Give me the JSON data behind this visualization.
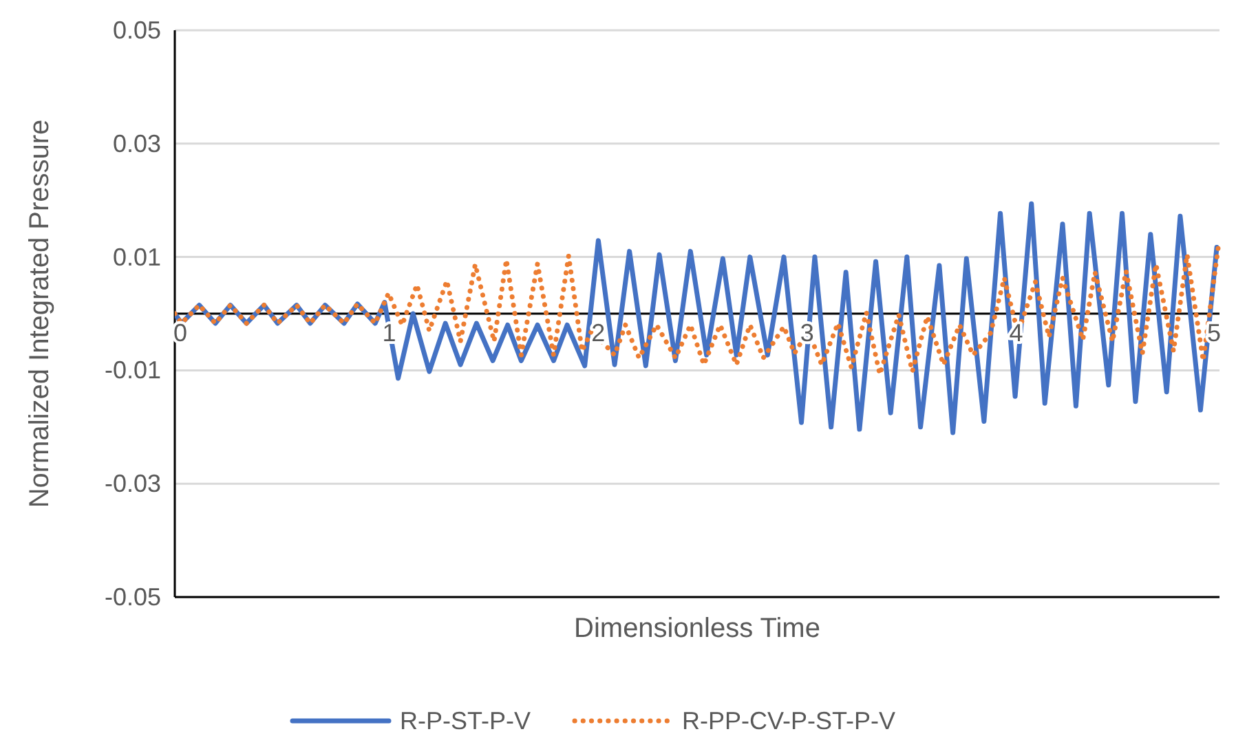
{
  "chart_data": {
    "type": "line",
    "xlabel": "Dimensionless Time",
    "ylabel": "Normalized Integrated Pressure",
    "xlim": [
      0,
      5
    ],
    "xticks": [
      0,
      1,
      2,
      3,
      4,
      5
    ],
    "ylim": [
      -0.05,
      0.05
    ],
    "yticks": [
      -0.05,
      -0.03,
      -0.01,
      0.01,
      0.03,
      0.05
    ],
    "grid": "y",
    "legend": "bottom",
    "marker": "none",
    "series": [
      {
        "name": "R-P-ST-P-V",
        "color": "#4472c4",
        "line_style": "solid",
        "x": [
          0,
          0.032,
          0.117,
          0.194,
          0.266,
          0.343,
          0.427,
          0.492,
          0.583,
          0.648,
          0.719,
          0.81,
          0.874,
          0.959,
          1.004,
          1.069,
          1.14,
          1.218,
          1.295,
          1.367,
          1.444,
          1.522,
          1.593,
          1.658,
          1.736,
          1.813,
          1.878,
          1.962,
          2.027,
          2.105,
          2.176,
          2.254,
          2.319,
          2.396,
          2.468,
          2.545,
          2.623,
          2.688,
          2.753,
          2.837,
          2.915,
          2.999,
          3.063,
          3.141,
          3.212,
          3.277,
          3.355,
          3.426,
          3.504,
          3.569,
          3.659,
          3.724,
          3.789,
          3.873,
          3.951,
          4.022,
          4.1,
          4.164,
          4.249,
          4.313,
          4.378,
          4.469,
          4.534,
          4.598,
          4.67,
          4.747,
          4.812,
          4.909,
          4.987
        ],
        "values": [
          0,
          -0.0017,
          0.0015,
          -0.0017,
          0.0015,
          -0.0017,
          0.0015,
          -0.0017,
          0.0015,
          -0.0017,
          0.0015,
          -0.0017,
          0.0017,
          -0.0017,
          0.002,
          -0.0114,
          0,
          -0.0102,
          -0.0017,
          -0.009,
          -0.0017,
          -0.0083,
          -0.002,
          -0.0083,
          -0.002,
          -0.0083,
          -0.002,
          -0.0092,
          0.0129,
          -0.009,
          0.011,
          -0.0092,
          0.0104,
          -0.0083,
          0.011,
          -0.0073,
          0.0097,
          -0.0073,
          0.01,
          -0.0073,
          0.01,
          -0.0192,
          0.01,
          -0.02,
          0.0073,
          -0.0204,
          0.0092,
          -0.0175,
          0.01,
          -0.02,
          0.0085,
          -0.021,
          0.0097,
          -0.019,
          0.0177,
          -0.0146,
          0.0194,
          -0.0158,
          0.0158,
          -0.0163,
          0.0177,
          -0.0126,
          0.0177,
          -0.0155,
          0.014,
          -0.0138,
          0.0172,
          -0.017,
          0.0117
        ]
      },
      {
        "name": "R-PP-CV-P-ST-P-V",
        "color": "#ed7d31",
        "line_style": "dotted",
        "x": [
          0,
          0.032,
          0.117,
          0.194,
          0.266,
          0.343,
          0.427,
          0.492,
          0.583,
          0.648,
          0.719,
          0.81,
          0.874,
          0.959,
          1.023,
          1.088,
          1.159,
          1.218,
          1.302,
          1.367,
          1.438,
          1.528,
          1.587,
          1.658,
          1.736,
          1.813,
          1.885,
          1.949,
          1.995,
          2.105,
          2.157,
          2.222,
          2.306,
          2.396,
          2.468,
          2.532,
          2.61,
          2.688,
          2.753,
          2.817,
          2.915,
          2.966,
          3.031,
          3.096,
          3.174,
          3.238,
          3.31,
          3.374,
          3.465,
          3.53,
          3.601,
          3.679,
          3.756,
          3.821,
          3.905,
          3.97,
          4.035,
          4.119,
          4.184,
          4.249,
          4.346,
          4.404,
          4.488,
          4.553,
          4.631,
          4.696,
          4.78,
          4.845,
          4.922,
          4.994
        ],
        "values": [
          0,
          -0.0017,
          0.0015,
          -0.0017,
          0.0015,
          -0.0017,
          0.0015,
          -0.0017,
          0.0015,
          -0.0017,
          0.0015,
          -0.0017,
          0.0017,
          -0.0017,
          0.0036,
          -0.002,
          0.0051,
          -0.003,
          0.0058,
          -0.0049,
          0.0087,
          -0.0049,
          0.0095,
          -0.0073,
          0.0088,
          -0.0073,
          0.0102,
          -0.0066,
          -0.003,
          -0.0073,
          -0.002,
          -0.0078,
          -0.002,
          -0.0078,
          -0.002,
          -0.009,
          -0.002,
          -0.009,
          -0.002,
          -0.0078,
          -0.0023,
          -0.007,
          -0.003,
          -0.009,
          -0.0017,
          -0.0095,
          0.0002,
          -0.0107,
          -0.0002,
          -0.0102,
          -0.0005,
          -0.009,
          -0.002,
          -0.0073,
          -0.0034,
          0.0063,
          -0.0034,
          0.0056,
          -0.0041,
          0.0063,
          -0.0046,
          0.0073,
          -0.0049,
          0.0075,
          -0.007,
          0.0087,
          -0.0066,
          0.0104,
          -0.0083,
          0.0117
        ]
      }
    ]
  }
}
